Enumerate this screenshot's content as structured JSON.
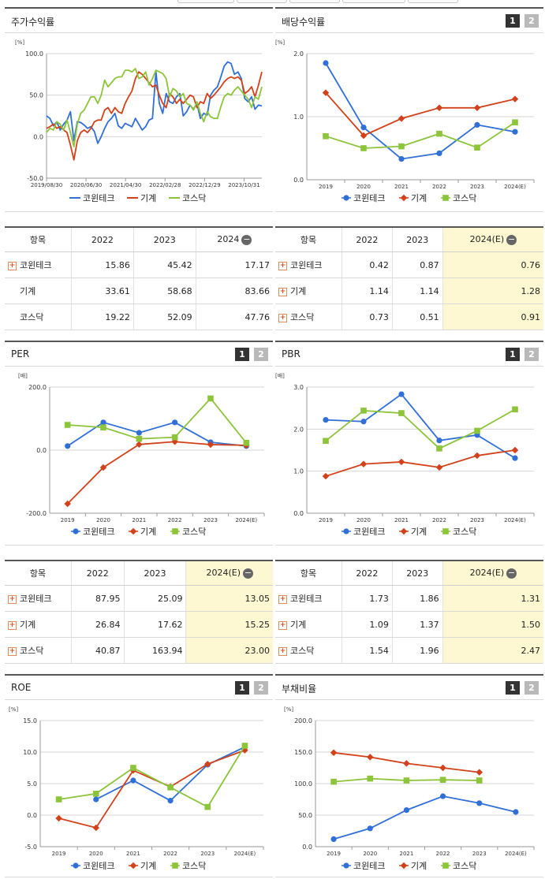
{
  "panels": {
    "stock_return": {
      "title": "주가수익률"
    },
    "dividend": {
      "title": "배당수익률",
      "btn1": "1",
      "btn2": "2"
    },
    "per": {
      "title": "PER",
      "btn1": "1",
      "btn2": "2"
    },
    "pbr": {
      "title": "PBR",
      "btn1": "1",
      "btn2": "2"
    },
    "roe": {
      "title": "ROE",
      "btn1": "1",
      "btn2": "2"
    },
    "debt": {
      "title": "부채비율",
      "btn1": "1",
      "btn2": "2"
    }
  },
  "legend": {
    "s1": "코윈테크",
    "s2": "기계",
    "s3": "코스닥"
  },
  "colors": {
    "s1": "#2f6fd6",
    "s2": "#d2421a",
    "s3": "#8cc43a"
  },
  "tables": {
    "stock_return": {
      "headers": [
        "항목",
        "2022",
        "2023",
        "2024"
      ],
      "rows": [
        {
          "name": "코윈테크",
          "v": [
            "15.86",
            "45.42",
            "17.17"
          ],
          "plus": true
        },
        {
          "name": "기계",
          "v": [
            "33.61",
            "58.68",
            "83.66"
          ],
          "plus": false
        },
        {
          "name": "코스닥",
          "v": [
            "19.22",
            "52.09",
            "47.76"
          ],
          "plus": false
        }
      ]
    },
    "dividend": {
      "headers": [
        "항목",
        "2022",
        "2023",
        "2024(E)"
      ],
      "rows": [
        {
          "name": "코윈테크",
          "v": [
            "0.42",
            "0.87",
            "0.76"
          ]
        },
        {
          "name": "기계",
          "v": [
            "1.14",
            "1.14",
            "1.28"
          ]
        },
        {
          "name": "코스닥",
          "v": [
            "0.73",
            "0.51",
            "0.91"
          ]
        }
      ]
    },
    "per": {
      "headers": [
        "항목",
        "2022",
        "2023",
        "2024(E)"
      ],
      "rows": [
        {
          "name": "코윈테크",
          "v": [
            "87.95",
            "25.09",
            "13.05"
          ]
        },
        {
          "name": "기계",
          "v": [
            "26.84",
            "17.62",
            "15.25"
          ]
        },
        {
          "name": "코스닥",
          "v": [
            "40.87",
            "163.94",
            "23.00"
          ]
        }
      ]
    },
    "pbr": {
      "headers": [
        "항목",
        "2022",
        "2023",
        "2024(E)"
      ],
      "rows": [
        {
          "name": "코윈테크",
          "v": [
            "1.73",
            "1.86",
            "1.31"
          ]
        },
        {
          "name": "기계",
          "v": [
            "1.09",
            "1.37",
            "1.50"
          ]
        },
        {
          "name": "코스닥",
          "v": [
            "1.54",
            "1.96",
            "2.47"
          ]
        }
      ]
    }
  },
  "chart_data": [
    {
      "id": "stock_return",
      "type": "line",
      "title": "주가수익률",
      "unit": "[%]",
      "ylim": [
        -50,
        100
      ],
      "yticks": [
        "100.0",
        "50.0",
        "0.0",
        "-50.0"
      ],
      "xtick_labels": [
        "2019/08/30",
        "2020/06/30",
        "2021/04/30",
        "2022/02/28",
        "2022/12/29",
        "2023/10/31"
      ],
      "series": [
        {
          "name": "코윈테크",
          "values": [
            25,
            22,
            13,
            18,
            8,
            15,
            20,
            30,
            -5,
            18,
            17,
            14,
            10,
            12,
            6,
            -8,
            0,
            10,
            18,
            22,
            28,
            13,
            10,
            16,
            14,
            12,
            22,
            15,
            8,
            12,
            20,
            22,
            78,
            40,
            28,
            52,
            42,
            40,
            48,
            52,
            25,
            30,
            38,
            33,
            40,
            22,
            28,
            26,
            50,
            56,
            60,
            72,
            85,
            90,
            88,
            75,
            78,
            70,
            46,
            42,
            48,
            33,
            38,
            37
          ]
        },
        {
          "name": "기계",
          "values": [
            10,
            12,
            15,
            10,
            12,
            8,
            5,
            -10,
            -28,
            -5,
            5,
            8,
            5,
            10,
            18,
            20,
            20,
            32,
            35,
            28,
            35,
            30,
            28,
            40,
            48,
            55,
            70,
            78,
            75,
            70,
            65,
            60,
            62,
            50,
            40,
            35,
            52,
            48,
            40,
            45,
            40,
            45,
            50,
            48,
            35,
            42,
            40,
            52,
            46,
            50,
            55,
            60,
            66,
            70,
            72,
            70,
            72,
            68,
            52,
            55,
            60,
            48,
            62,
            78
          ]
        },
        {
          "name": "코스닥",
          "values": [
            5,
            10,
            8,
            18,
            15,
            8,
            20,
            5,
            -12,
            15,
            28,
            32,
            40,
            48,
            48,
            40,
            50,
            68,
            60,
            65,
            70,
            72,
            72,
            80,
            80,
            78,
            82,
            70,
            72,
            78,
            62,
            70,
            80,
            78,
            76,
            70,
            48,
            58,
            55,
            48,
            52,
            40,
            38,
            32,
            42,
            28,
            18,
            30,
            24,
            22,
            22,
            36,
            48,
            52,
            50,
            56,
            60,
            55,
            50,
            45,
            35,
            48,
            45,
            60
          ]
        }
      ]
    },
    {
      "id": "dividend",
      "type": "line",
      "title": "배당수익률",
      "unit": "[%]",
      "ylim": [
        0,
        2
      ],
      "yticks": [
        "2.0",
        "1.0",
        "0.0"
      ],
      "categories": [
        "2019",
        "2020",
        "2021",
        "2022",
        "2023",
        "2024(E)"
      ],
      "series": [
        {
          "name": "코윈테크",
          "values": [
            1.85,
            0.83,
            0.33,
            0.42,
            0.87,
            0.76
          ]
        },
        {
          "name": "기계",
          "values": [
            1.38,
            0.7,
            0.97,
            1.14,
            1.14,
            1.28
          ]
        },
        {
          "name": "코스닥",
          "values": [
            0.69,
            0.5,
            0.53,
            0.73,
            0.51,
            0.91
          ]
        }
      ]
    },
    {
      "id": "per",
      "type": "line",
      "title": "PER",
      "unit": "[배]",
      "ylim": [
        -200,
        200
      ],
      "yticks": [
        "200.0",
        "0.0",
        "-200.0"
      ],
      "categories": [
        "2019",
        "2020",
        "2021",
        "2022",
        "2023",
        "2024(E)"
      ],
      "series": [
        {
          "name": "코윈테크",
          "values": [
            13,
            88,
            55,
            87.95,
            25.09,
            13.05
          ]
        },
        {
          "name": "기계",
          "values": [
            -170,
            -55,
            18,
            26.84,
            17.62,
            15.25
          ]
        },
        {
          "name": "코스닥",
          "values": [
            80,
            72,
            36,
            40.87,
            163.94,
            23.0
          ]
        }
      ]
    },
    {
      "id": "pbr",
      "type": "line",
      "title": "PBR",
      "unit": "[배]",
      "ylim": [
        0,
        3
      ],
      "yticks": [
        "3.0",
        "2.0",
        "1.0",
        "0.0"
      ],
      "categories": [
        "2019",
        "2020",
        "2021",
        "2022",
        "2023",
        "2024(E)"
      ],
      "series": [
        {
          "name": "코윈테크",
          "values": [
            2.22,
            2.18,
            2.83,
            1.73,
            1.86,
            1.31
          ]
        },
        {
          "name": "기계",
          "values": [
            0.88,
            1.17,
            1.22,
            1.09,
            1.37,
            1.5
          ]
        },
        {
          "name": "코스닥",
          "values": [
            1.72,
            2.44,
            2.38,
            1.54,
            1.96,
            2.47
          ]
        }
      ]
    },
    {
      "id": "roe",
      "type": "line",
      "title": "ROE",
      "unit": "[%]",
      "ylim": [
        -5,
        15
      ],
      "yticks": [
        "15.0",
        "10.0",
        "5.0",
        "0.0",
        "-5.0"
      ],
      "categories": [
        "2019",
        "2020",
        "2021",
        "2022",
        "2023",
        "2024(E)"
      ],
      "series": [
        {
          "name": "코윈테크",
          "values": [
            null,
            2.5,
            5.5,
            2.3,
            8.0,
            10.8
          ]
        },
        {
          "name": "기계",
          "values": [
            -0.5,
            -2.0,
            7.1,
            4.5,
            8.1,
            10.3
          ]
        },
        {
          "name": "코스닥",
          "values": [
            2.5,
            3.4,
            7.5,
            4.4,
            1.3,
            11.0
          ]
        }
      ]
    },
    {
      "id": "debt",
      "type": "line",
      "title": "부채비율",
      "unit": "[%]",
      "ylim": [
        0,
        200
      ],
      "yticks": [
        "200.0",
        "150.0",
        "100.0",
        "50.0",
        "0.0"
      ],
      "categories": [
        "2019",
        "2020",
        "2021",
        "2022",
        "2023",
        "2024(E)"
      ],
      "series": [
        {
          "name": "코윈테크",
          "values": [
            12,
            29,
            58,
            80,
            69,
            55
          ]
        },
        {
          "name": "기계",
          "values": [
            149,
            142,
            132,
            125,
            118,
            null
          ]
        },
        {
          "name": "코스닥",
          "values": [
            103,
            108,
            105,
            106,
            105,
            null
          ]
        }
      ]
    }
  ]
}
